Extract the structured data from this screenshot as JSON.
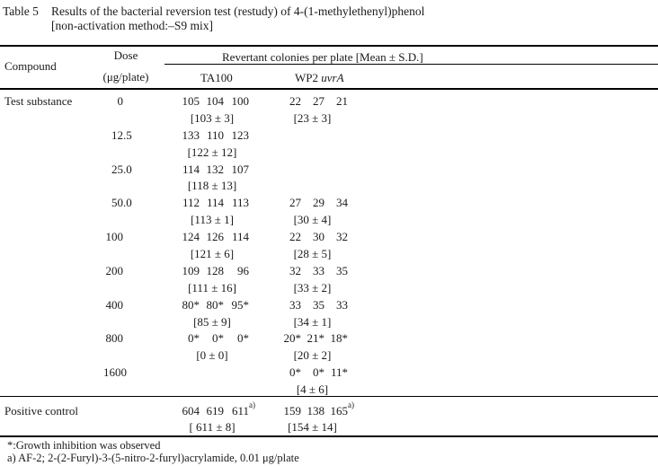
{
  "title": {
    "label": "Table 5",
    "line1": "Results of the bacterial reversion test (restudy) of 4-(1-methylethenyl)phenol",
    "line2": "[non-activation method:–S9 mix]"
  },
  "header": {
    "compound": "Compound",
    "dose_line1": "Dose",
    "dose_line2": "(μg/plate)",
    "revertant": "Revertant colonies per plate [Mean ± S.D.]",
    "strain1": "TA100",
    "strain2_normal": "WP2 ",
    "strain2_italic": "uvrA"
  },
  "body": {
    "compound_label": "Test substance",
    "rows": [
      {
        "dose": "0",
        "ta100": [
          "105",
          "104",
          "100"
        ],
        "ta100_mean": "[103 ± 3]",
        "wp2": [
          "22",
          "27",
          "21"
        ],
        "wp2_mean": "[23 ± 3]"
      },
      {
        "dose": "12.5",
        "ta100": [
          "133",
          "110",
          "123"
        ],
        "ta100_mean": "[122 ± 12]",
        "wp2": [],
        "wp2_mean": ""
      },
      {
        "dose": "25.0",
        "ta100": [
          "114",
          "132",
          "107"
        ],
        "ta100_mean": "[118 ± 13]",
        "wp2": [],
        "wp2_mean": ""
      },
      {
        "dose": "50.0",
        "ta100": [
          "112",
          "114",
          "113"
        ],
        "ta100_mean": "[113 ± 1]",
        "wp2": [
          "27",
          "29",
          "34"
        ],
        "wp2_mean": "[30 ± 4]"
      },
      {
        "dose": "100",
        "ta100": [
          "124",
          "126",
          "114"
        ],
        "ta100_mean": "[121 ± 6]",
        "wp2": [
          "22",
          "30",
          "32"
        ],
        "wp2_mean": "[28 ± 5]"
      },
      {
        "dose": "200",
        "ta100": [
          "109",
          "128",
          "96"
        ],
        "ta100_mean": "[111 ± 16]",
        "wp2": [
          "32",
          "33",
          "35"
        ],
        "wp2_mean": "[33 ± 2]"
      },
      {
        "dose": "400",
        "ta100": [
          "80*",
          "80*",
          "95*"
        ],
        "ta100_mean": "[85 ± 9]",
        "wp2": [
          "33",
          "35",
          "33"
        ],
        "wp2_mean": "[34 ± 1]"
      },
      {
        "dose": "800",
        "ta100": [
          "0*",
          "0*",
          "0*"
        ],
        "ta100_mean": "[0 ± 0]",
        "wp2": [
          "20*",
          "21*",
          "18*"
        ],
        "wp2_mean": "[20 ± 2]"
      },
      {
        "dose": "1600",
        "ta100": [],
        "ta100_mean": "",
        "wp2": [
          "0*",
          "0*",
          "11*"
        ],
        "wp2_mean": "[4 ± 6]"
      }
    ]
  },
  "positive_control": {
    "label": "Positive control",
    "ta100": [
      "604",
      "619",
      "611"
    ],
    "ta100_sup": "a)",
    "ta100_mean": "[ 611 ± 8]",
    "wp2": [
      "159",
      "138",
      "165"
    ],
    "wp2_sup": "a)",
    "wp2_mean": "[154 ± 14]"
  },
  "footnotes": {
    "line1": "*:Growth inhibition was observed",
    "line2": "a) AF-2; 2-(2-Furyl)-3-(5-nitro-2-furyl)acrylamide, 0.01 μg/plate"
  }
}
